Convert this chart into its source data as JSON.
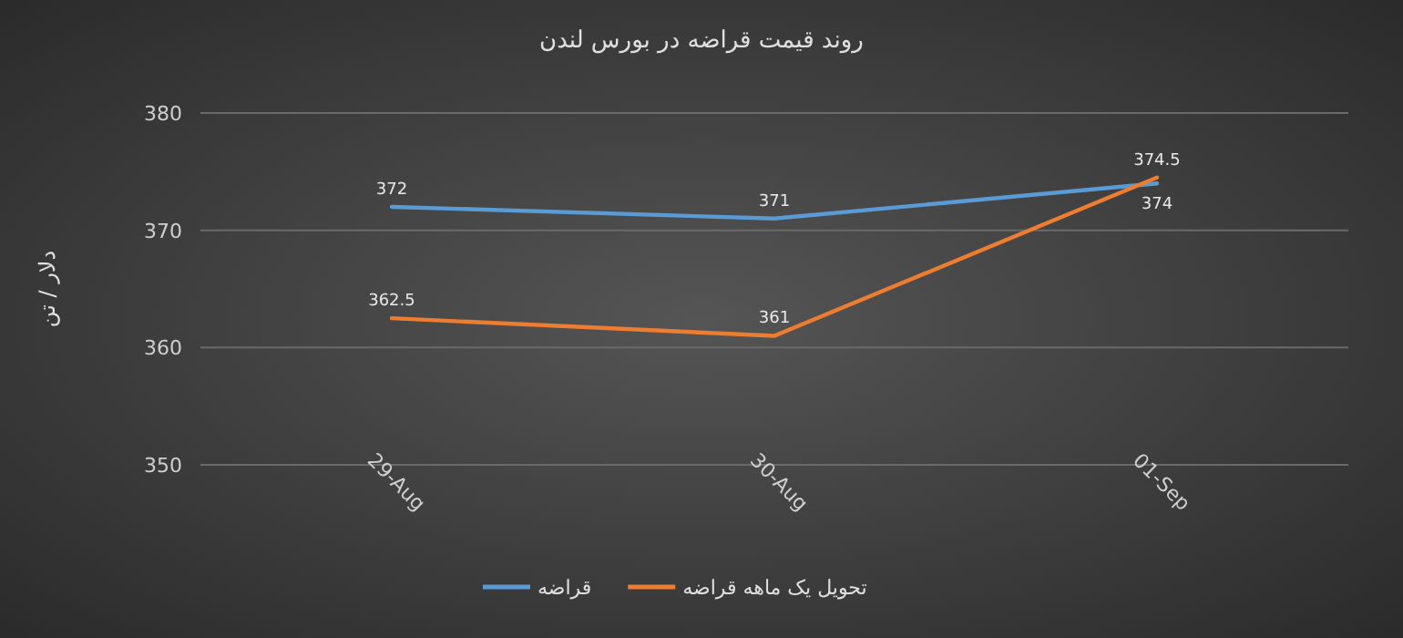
{
  "chart_data": {
    "type": "line",
    "title": "روند قیمت قراضه در بورس لندن",
    "ylabel": "دلار / تن",
    "categories": [
      "29-Aug",
      "30-Aug",
      "01-Sep"
    ],
    "series": [
      {
        "name": "قراضه",
        "color": "#5b9bd5",
        "values": [
          372,
          371,
          374
        ]
      },
      {
        "name": "تحویل یک ماهه قراضه",
        "color": "#ed7d31",
        "values": [
          362.5,
          361,
          374.5
        ]
      }
    ],
    "ylim": [
      350,
      380
    ],
    "yticks": [
      350,
      360,
      370,
      380
    ],
    "grid": "y",
    "legend": "bottom",
    "data_labels": true,
    "marker": "none",
    "line_style": "solid"
  }
}
